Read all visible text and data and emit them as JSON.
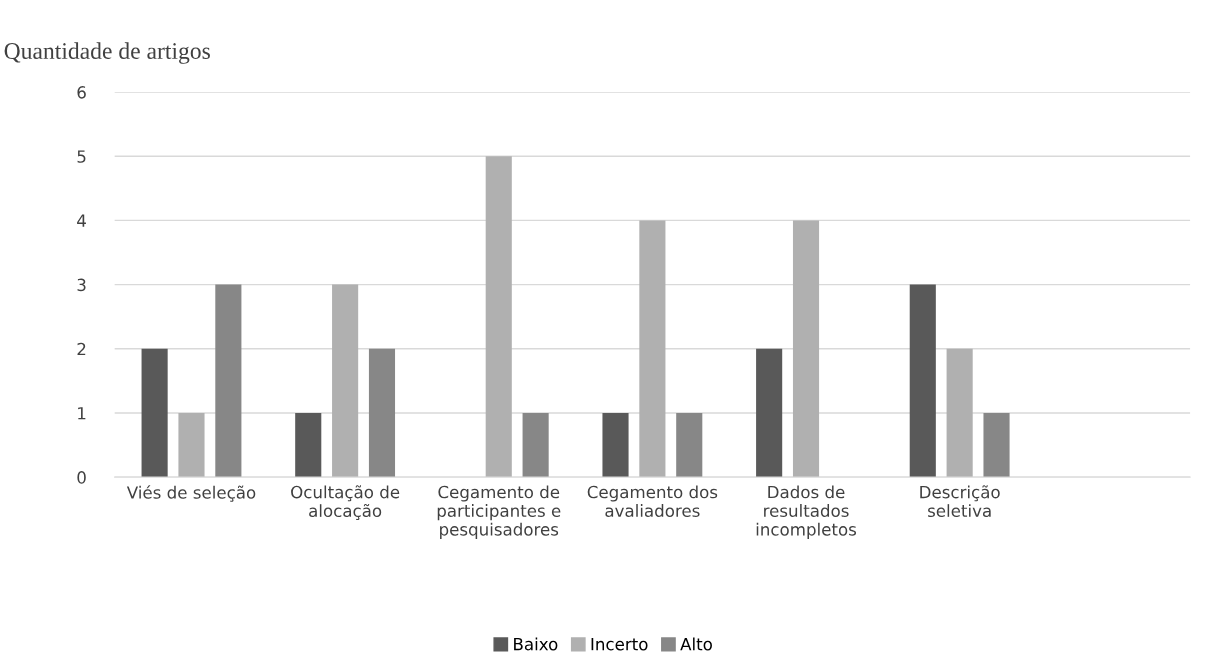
{
  "chart_data": {
    "type": "bar",
    "title": "Quantidade de artigos",
    "categories": [
      "Viés de seleção",
      "Ocultação de alocação",
      "Cegamento de participantes e pesquisadores",
      "Cegamento dos avaliadores",
      "Dados de resultados incompletos",
      "Descrição seletiva",
      null
    ],
    "series": [
      {
        "name": "Baixo",
        "color": "#595959",
        "values": [
          2,
          1,
          0,
          1,
          2,
          3,
          null
        ]
      },
      {
        "name": "Incerto",
        "color": "#b0b0b0",
        "values": [
          1,
          3,
          5,
          4,
          4,
          2,
          null
        ]
      },
      {
        "name": "Alto",
        "color": "#878787",
        "values": [
          3,
          2,
          1,
          1,
          0,
          1,
          null
        ]
      }
    ],
    "ylim": [
      0,
      6
    ],
    "yticks": [
      0,
      1,
      2,
      3,
      4,
      5,
      6
    ],
    "grid": "y",
    "legend": "bottom"
  }
}
